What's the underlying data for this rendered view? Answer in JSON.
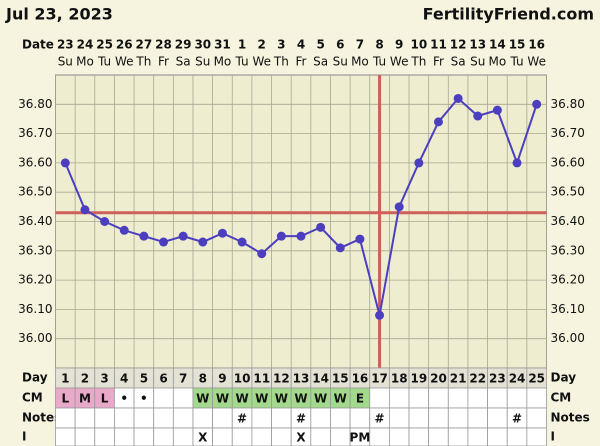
{
  "chart_data": {
    "type": "line",
    "title": "Jul 23, 2023",
    "site": "FertilityFriend.com",
    "date_label": "Date",
    "categories": [
      "23",
      "24",
      "25",
      "26",
      "27",
      "28",
      "29",
      "30",
      "31",
      "1",
      "2",
      "3",
      "4",
      "5",
      "6",
      "7",
      "8",
      "9",
      "10",
      "11",
      "12",
      "13",
      "14",
      "15",
      "16"
    ],
    "weekdays": [
      "Su",
      "Mo",
      "Tu",
      "We",
      "Th",
      "Fr",
      "Sa",
      "Su",
      "Mo",
      "Tu",
      "We",
      "Th",
      "Fr",
      "Sa",
      "Su",
      "Mo",
      "Tu",
      "We",
      "Th",
      "Fr",
      "Sa",
      "Su",
      "Mo",
      "Tu",
      "We"
    ],
    "values": [
      36.6,
      36.44,
      36.4,
      36.37,
      36.35,
      36.33,
      36.35,
      36.33,
      36.36,
      36.33,
      36.29,
      36.35,
      36.35,
      36.38,
      36.31,
      36.34,
      36.08,
      36.45,
      36.6,
      36.74,
      36.82,
      36.76,
      36.78,
      36.6,
      36.8
    ],
    "color": "#4b3fc0",
    "ylim": [
      35.9,
      36.9
    ],
    "yticks": [
      {
        "value": 36.0,
        "label": "36.00"
      },
      {
        "value": 36.1,
        "label": "36.10"
      },
      {
        "value": 36.2,
        "label": "36.20"
      },
      {
        "value": 36.3,
        "label": "36.30"
      },
      {
        "value": 36.4,
        "label": "36.40"
      },
      {
        "value": 36.5,
        "label": "36.50"
      },
      {
        "value": 36.6,
        "label": "36.60"
      },
      {
        "value": 36.7,
        "label": "36.70"
      },
      {
        "value": 36.8,
        "label": "36.80"
      }
    ],
    "grid": true,
    "coverline": 36.43,
    "ovulation_day": 17,
    "line_color": "#cf5f5a",
    "day_label": "Day",
    "days": [
      1,
      2,
      3,
      4,
      5,
      6,
      7,
      8,
      9,
      10,
      11,
      12,
      13,
      14,
      15,
      16,
      17,
      18,
      19,
      20,
      21,
      22,
      23,
      24,
      25
    ],
    "cm_label": "CM",
    "cm": [
      "L",
      "M",
      "L",
      "•",
      "•",
      null,
      null,
      "W",
      "W",
      "W",
      "W",
      "W",
      "W",
      "W",
      "W",
      "E",
      null,
      null,
      null,
      null,
      null,
      null,
      null,
      null,
      null
    ],
    "notes_label": "Notes",
    "notes": [
      null,
      null,
      null,
      null,
      null,
      null,
      null,
      null,
      null,
      "#",
      null,
      null,
      "#",
      null,
      null,
      null,
      "#",
      null,
      null,
      null,
      null,
      null,
      null,
      "#",
      null
    ],
    "i_label": "I",
    "intercourse": [
      null,
      null,
      null,
      null,
      null,
      null,
      null,
      "X",
      null,
      null,
      null,
      null,
      "X",
      null,
      null,
      "PM",
      null,
      null,
      null,
      null,
      null,
      null,
      null,
      null,
      null
    ]
  }
}
